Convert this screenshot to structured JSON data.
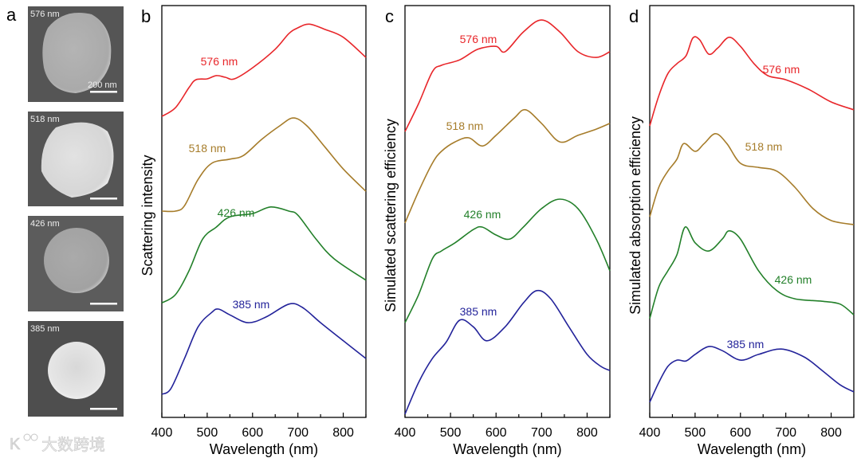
{
  "panel_letters": [
    "a",
    "b",
    "c",
    "d"
  ],
  "sem_images": {
    "labels": [
      "576 nm",
      "518 nm",
      "426 nm",
      "385 nm"
    ],
    "scale_bar_label": "200 nm"
  },
  "watermark": "大数跨境",
  "colors": {
    "576": "#e8262a",
    "518": "#a67c2a",
    "426": "#23802a",
    "385": "#23239a"
  },
  "chart_data": [
    {
      "id": "b",
      "type": "line",
      "ylabel": "Scattering intensity",
      "xlabel": "Wavelength (nm)",
      "xlim": [
        400,
        850
      ],
      "ylim": [
        0,
        100
      ],
      "xticks": [
        "400",
        "500",
        "600",
        "700",
        "800"
      ],
      "series": [
        {
          "name": "576 nm",
          "x": [
            400,
            430,
            460,
            475,
            500,
            520,
            540,
            560,
            600,
            650,
            680,
            700,
            725,
            760,
            800,
            850
          ],
          "y": [
            73.1,
            75.2,
            80.1,
            82.0,
            82.2,
            83.0,
            82.6,
            82.2,
            84.9,
            89.4,
            93.2,
            94.6,
            95.5,
            94.2,
            92.3,
            87.4
          ]
        },
        {
          "name": "518 nm",
          "x": [
            400,
            430,
            450,
            480,
            510,
            550,
            580,
            620,
            660,
            690,
            720,
            760,
            800,
            850
          ],
          "y": [
            50.1,
            50.1,
            51.4,
            57.8,
            61.7,
            62.7,
            63.6,
            67.5,
            70.8,
            72.7,
            70.8,
            65.6,
            60.3,
            54.9
          ]
        },
        {
          "name": "426 nm",
          "x": [
            400,
            430,
            460,
            490,
            520,
            550,
            600,
            640,
            680,
            700,
            740,
            780,
            850
          ],
          "y": [
            27.8,
            29.8,
            35.6,
            43.3,
            46.2,
            48.7,
            49.5,
            51.1,
            50.1,
            49.1,
            43.3,
            38.5,
            33.3
          ]
        },
        {
          "name": "385 nm",
          "x": [
            400,
            420,
            450,
            480,
            510,
            525,
            550,
            590,
            630,
            680,
            710,
            750,
            800,
            850
          ],
          "y": [
            5.6,
            7.0,
            14.3,
            22.0,
            25.5,
            26.3,
            24.9,
            23.0,
            24.4,
            27.5,
            26.7,
            23.0,
            18.6,
            14.3
          ]
        }
      ]
    },
    {
      "id": "c",
      "type": "line",
      "ylabel": "Simulated scattering efficiency",
      "xlabel": "Wavelength (nm)",
      "xlim": [
        400,
        850
      ],
      "ylim": [
        0,
        100
      ],
      "xticks": [
        "400",
        "500",
        "600",
        "700",
        "800"
      ],
      "series": [
        {
          "name": "576 nm",
          "x": [
            400,
            430,
            460,
            480,
            520,
            560,
            600,
            620,
            660,
            700,
            740,
            780,
            820,
            850
          ],
          "y": [
            69.4,
            76.2,
            83.9,
            85.5,
            86.8,
            89.4,
            90.1,
            88.8,
            93.6,
            96.5,
            93.6,
            88.8,
            87.4,
            88.8
          ]
        },
        {
          "name": "518 nm",
          "x": [
            400,
            430,
            460,
            480,
            510,
            540,
            570,
            600,
            640,
            665,
            700,
            740,
            780,
            820,
            850
          ],
          "y": [
            47.2,
            54.9,
            61.7,
            64.6,
            66.9,
            67.9,
            65.9,
            68.5,
            72.7,
            74.7,
            71.4,
            66.9,
            68.5,
            70.0,
            71.4
          ]
        },
        {
          "name": "426 nm",
          "x": [
            400,
            430,
            460,
            480,
            510,
            550,
            570,
            600,
            630,
            660,
            700,
            740,
            780,
            820,
            850
          ],
          "y": [
            23.0,
            29.8,
            38.5,
            40.4,
            42.4,
            45.6,
            46.2,
            44.3,
            43.3,
            46.2,
            50.7,
            53.0,
            50.7,
            43.3,
            35.6
          ]
        },
        {
          "name": "385 nm",
          "x": [
            400,
            430,
            460,
            490,
            520,
            550,
            580,
            620,
            660,
            690,
            720,
            760,
            800,
            830,
            850
          ],
          "y": [
            0.8,
            8.5,
            14.3,
            18.2,
            23.6,
            22.0,
            18.6,
            22.0,
            27.8,
            30.8,
            28.8,
            22.0,
            15.3,
            12.4,
            11.4
          ]
        }
      ]
    },
    {
      "id": "d",
      "type": "line",
      "ylabel": "Simulated absorption efficiency",
      "xlabel": "Wavelength (nm)",
      "xlim": [
        400,
        850
      ],
      "ylim": [
        0,
        100
      ],
      "xticks": [
        "400",
        "500",
        "600",
        "700",
        "800"
      ],
      "series": [
        {
          "name": "576 nm",
          "x": [
            400,
            420,
            440,
            460,
            480,
            495,
            510,
            530,
            550,
            575,
            600,
            630,
            660,
            700,
            750,
            800,
            850
          ],
          "y": [
            70.8,
            78.1,
            83.5,
            85.9,
            87.8,
            92.1,
            91.7,
            88.2,
            89.7,
            92.3,
            90.1,
            85.9,
            83.0,
            82.0,
            79.7,
            76.6,
            74.7
          ]
        },
        {
          "name": "518 nm",
          "x": [
            400,
            420,
            440,
            460,
            475,
            500,
            520,
            545,
            570,
            600,
            640,
            680,
            720,
            760,
            800,
            850
          ],
          "y": [
            48.7,
            55.9,
            59.8,
            62.7,
            66.5,
            64.6,
            66.5,
            68.9,
            66.5,
            61.7,
            60.7,
            59.8,
            55.9,
            50.7,
            47.8,
            46.8
          ]
        },
        {
          "name": "426 nm",
          "x": [
            400,
            420,
            440,
            460,
            478,
            500,
            530,
            560,
            575,
            600,
            640,
            680,
            720,
            780,
            820,
            850
          ],
          "y": [
            24.0,
            31.7,
            35.6,
            39.5,
            46.2,
            42.4,
            40.4,
            43.3,
            45.3,
            43.3,
            35.6,
            30.8,
            28.8,
            28.2,
            27.5,
            24.9
          ]
        },
        {
          "name": "385 nm",
          "x": [
            400,
            420,
            440,
            460,
            480,
            500,
            530,
            560,
            600,
            640,
            690,
            740,
            780,
            820,
            850
          ],
          "y": [
            3.7,
            8.5,
            12.4,
            13.9,
            13.7,
            15.3,
            17.2,
            16.2,
            13.9,
            15.3,
            16.6,
            14.7,
            11.4,
            7.9,
            6.2
          ]
        }
      ]
    }
  ]
}
